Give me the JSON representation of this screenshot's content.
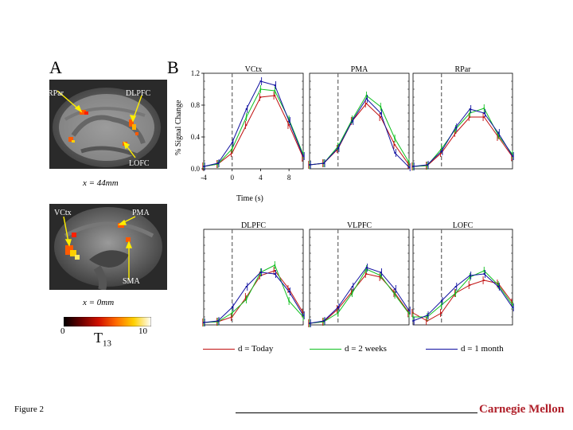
{
  "panel_a_label": "A",
  "panel_b_label": "B",
  "figure_label": "Figure 2",
  "logo_text": "Carnegie Mellon",
  "brain_top": {
    "labels": {
      "rpar": "RPar",
      "dlpfc": "DLPFC",
      "lofc": "LOFC"
    },
    "caption": "x = 44mm"
  },
  "brain_bottom": {
    "labels": {
      "vctx": "VCtx",
      "pma": "PMA",
      "sma": "SMA"
    },
    "caption": "x = 0mm"
  },
  "colorbar": {
    "min_label": "0",
    "max_label": "10",
    "t_label": "T",
    "t_sub": "13",
    "colors": [
      "#000000",
      "#6a0000",
      "#d01000",
      "#ff6a00",
      "#ffd000",
      "#ffffff"
    ]
  },
  "axes": {
    "ylabel": "% Signal Change",
    "xlabel": "Time (s)",
    "yticks": [
      "0.0",
      "0.4",
      "0.8",
      "1.2"
    ],
    "xticks": [
      "-4",
      "0",
      "4",
      "8"
    ]
  },
  "legend": [
    {
      "label": "d = Today",
      "color": "#c01010"
    },
    {
      "label": "d = 2 weeks",
      "color": "#10c020"
    },
    {
      "label": "d = 1 month",
      "color": "#1010a0"
    }
  ],
  "chart_data": {
    "type": "line",
    "x": [
      -4,
      -2,
      0,
      2,
      4,
      6,
      8,
      10
    ],
    "ylim": [
      0,
      1.2
    ],
    "xlim": [
      -4,
      10
    ],
    "dashed_vline_x": 0,
    "panels": [
      {
        "title": "VCtx",
        "series": [
          {
            "name": "d = Today",
            "values": [
              0.03,
              0.06,
              0.2,
              0.55,
              0.9,
              0.92,
              0.55,
              0.14
            ]
          },
          {
            "name": "d = 2 weeks",
            "values": [
              0.03,
              0.06,
              0.25,
              0.65,
              1.0,
              0.98,
              0.62,
              0.18
            ]
          },
          {
            "name": "d = 1 month",
            "values": [
              0.03,
              0.07,
              0.33,
              0.75,
              1.1,
              1.05,
              0.6,
              0.16
            ]
          }
        ]
      },
      {
        "title": "PMA",
        "series": [
          {
            "name": "d = Today",
            "values": [
              0.05,
              0.07,
              0.25,
              0.6,
              0.82,
              0.65,
              0.3,
              0.05
            ]
          },
          {
            "name": "d = 2 weeks",
            "values": [
              0.05,
              0.07,
              0.28,
              0.62,
              0.92,
              0.78,
              0.38,
              0.08
            ]
          },
          {
            "name": "d = 1 month",
            "values": [
              0.05,
              0.07,
              0.26,
              0.6,
              0.88,
              0.7,
              0.2,
              0.02
            ]
          }
        ]
      },
      {
        "title": "RPar",
        "series": [
          {
            "name": "d = Today",
            "values": [
              0.03,
              0.04,
              0.2,
              0.45,
              0.65,
              0.65,
              0.4,
              0.15
            ]
          },
          {
            "name": "d = 2 weeks",
            "values": [
              0.03,
              0.04,
              0.25,
              0.5,
              0.7,
              0.76,
              0.42,
              0.18
            ]
          },
          {
            "name": "d = 1 month",
            "values": [
              0.03,
              0.05,
              0.22,
              0.52,
              0.75,
              0.7,
              0.45,
              0.16
            ]
          }
        ]
      },
      {
        "title": "DLPFC",
        "series": [
          {
            "name": "d = Today",
            "values": [
              0.03,
              0.04,
              0.1,
              0.35,
              0.62,
              0.68,
              0.45,
              0.15
            ]
          },
          {
            "name": "d = 2 weeks",
            "values": [
              0.03,
              0.04,
              0.15,
              0.32,
              0.66,
              0.75,
              0.3,
              0.1
            ]
          },
          {
            "name": "d = 1 month",
            "values": [
              0.03,
              0.05,
              0.22,
              0.48,
              0.66,
              0.64,
              0.42,
              0.12
            ]
          }
        ]
      },
      {
        "title": "VLPFC",
        "series": [
          {
            "name": "d = Today",
            "values": [
              0.02,
              0.04,
              0.2,
              0.42,
              0.64,
              0.6,
              0.4,
              0.15
            ]
          },
          {
            "name": "d = 2 weeks",
            "values": [
              0.02,
              0.04,
              0.15,
              0.4,
              0.7,
              0.62,
              0.38,
              0.14
            ]
          },
          {
            "name": "d = 1 month",
            "values": [
              0.02,
              0.05,
              0.22,
              0.48,
              0.72,
              0.66,
              0.45,
              0.18
            ]
          }
        ]
      },
      {
        "title": "LOFC",
        "series": [
          {
            "name": "d = Today",
            "values": [
              0.15,
              0.05,
              0.15,
              0.4,
              0.5,
              0.56,
              0.52,
              0.28
            ]
          },
          {
            "name": "d = 2 weeks",
            "values": [
              0.1,
              0.1,
              0.25,
              0.4,
              0.6,
              0.68,
              0.5,
              0.25
            ]
          },
          {
            "name": "d = 1 month",
            "values": [
              0.05,
              0.12,
              0.3,
              0.48,
              0.62,
              0.64,
              0.48,
              0.22
            ]
          }
        ]
      }
    ]
  }
}
